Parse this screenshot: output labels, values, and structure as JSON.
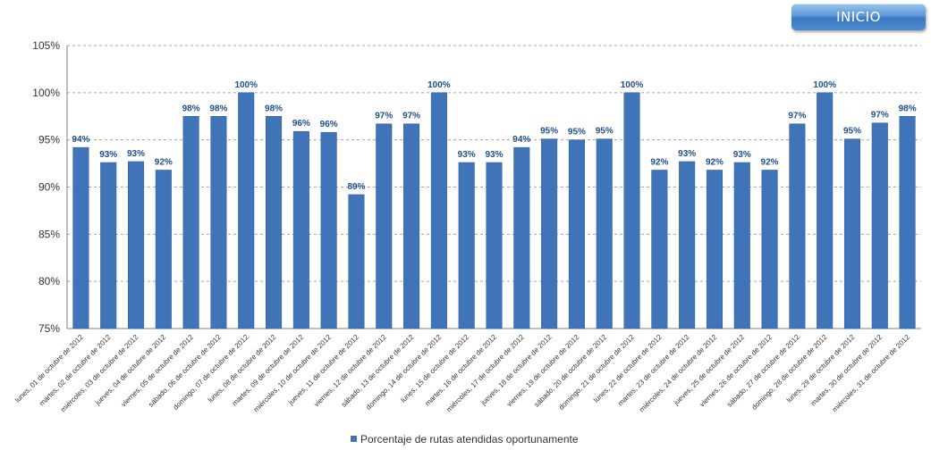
{
  "nav": {
    "inicio_label": "INICIO"
  },
  "colors": {
    "bar": "#3f74b8",
    "bar_edge": "#2f5c99",
    "grid": "#a6a6a6",
    "data_label": "#1f4e8a"
  },
  "chart_data": {
    "type": "bar",
    "title": "",
    "xlabel": "",
    "ylabel": "",
    "ylim": [
      75,
      105
    ],
    "yticks": [
      75,
      80,
      85,
      90,
      95,
      100,
      105
    ],
    "ytick_labels": [
      "75%",
      "80%",
      "85%",
      "90%",
      "95%",
      "100%",
      "105%"
    ],
    "grid": "horizontal-dashed",
    "legend_position": "bottom",
    "categories": [
      "lunes, 01 de octubre de 2012",
      "martes, 02 de octubre de 2012",
      "miércoles, 03 de octubre de 2012",
      "jueves, 04 de octubre de 2012",
      "viernes, 05 de octubre de 2012",
      "sábado, 06 de octubre de 2012",
      "domingo, 07 de octubre de 2012",
      "lunes, 08 de octubre de 2012",
      "martes, 09 de octubre de 2012",
      "miércoles, 10 de octubre de 2012",
      "jueves, 11 de octubre de 2012",
      "viernes, 12 de octubre de 2012",
      "sábado, 13 de octubre de 2012",
      "domingo, 14 de octubre de 2012",
      "lunes, 15 de octubre de 2012",
      "martes, 16 de octubre de 2012",
      "miércoles, 17 de octubre de 2012",
      "jueves, 18 de octubre de 2012",
      "viernes, 19 de octubre de 2012",
      "sábado, 20 de octubre de 2012",
      "domingo, 21 de octubre de 2012",
      "lunes, 22 de octubre de 2012",
      "martes, 23 de octubre de 2012",
      "miércoles, 24 de octubre de 2012",
      "jueves, 25 de octubre de 2012",
      "viernes, 26 de octubre de 2012",
      "sábado, 27 de octubre de 2012",
      "domingo, 28 de octubre de 2012",
      "lunes, 29 de octubre de 2012",
      "martes, 30 de octubre de 2012",
      "miércoles, 31 de octubre de 2012"
    ],
    "series": [
      {
        "name": "Porcentaje de rutas atendidas oportunamente",
        "values": [
          94.2,
          92.6,
          92.7,
          91.8,
          97.5,
          97.5,
          100,
          97.5,
          95.9,
          95.8,
          89.2,
          96.7,
          96.7,
          100,
          92.6,
          92.6,
          94.2,
          95.1,
          95.0,
          95.1,
          100,
          91.8,
          92.7,
          91.8,
          92.6,
          91.8,
          96.7,
          100,
          95.1,
          96.8,
          97.5
        ],
        "labels": [
          "94%",
          "93%",
          "93%",
          "92%",
          "98%",
          "98%",
          "100%",
          "98%",
          "96%",
          "96%",
          "89%",
          "97%",
          "97%",
          "100%",
          "93%",
          "93%",
          "94%",
          "95%",
          "95%",
          "95%",
          "100%",
          "92%",
          "93%",
          "92%",
          "93%",
          "92%",
          "97%",
          "100%",
          "95%",
          "97%",
          "98%"
        ]
      }
    ]
  }
}
